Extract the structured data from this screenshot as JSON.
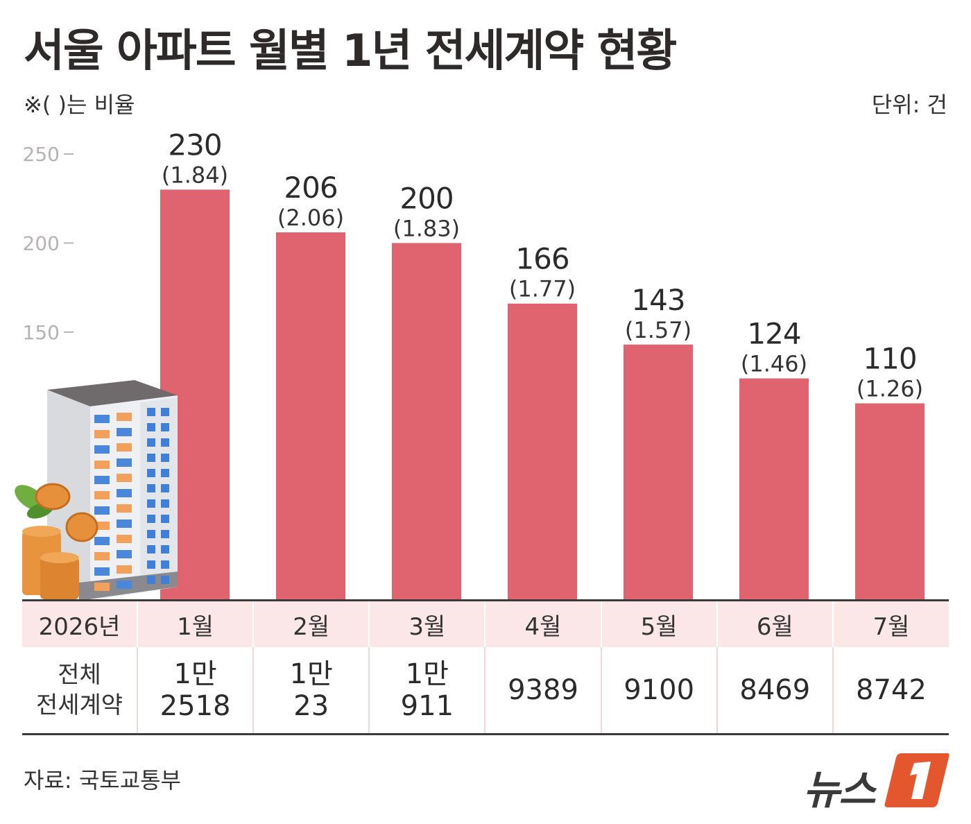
{
  "title": "서울 아파트 월별 1년 전세계약 현황",
  "note": "※( )는 비율",
  "unit": "단위: 건",
  "colors": {
    "bar": "#e0646f",
    "table_header_bg": "#fbe7e8",
    "axis": "#b7b2b2"
  },
  "chart_data": {
    "type": "bar",
    "categories": [
      "1월",
      "2월",
      "3월",
      "4월",
      "5월",
      "6월",
      "7월"
    ],
    "values": [
      230,
      206,
      200,
      166,
      143,
      124,
      110
    ],
    "ratios": [
      "(1.84)",
      "(2.06)",
      "(1.83)",
      "(1.77)",
      "(1.57)",
      "(1.46)",
      "(1.26)"
    ],
    "yticks": [
      150,
      200,
      250
    ],
    "ylim": [
      0,
      250
    ],
    "title": "서울 아파트 월별 1년 전세계약 현황",
    "ylabel": "",
    "grid": false
  },
  "table": {
    "year_label": "2026년",
    "months": [
      "1월",
      "2월",
      "3월",
      "4월",
      "5월",
      "6월",
      "7월"
    ],
    "total_label_line1": "전체",
    "total_label_line2": "전세계약",
    "totals": [
      {
        "line1": "1만",
        "line2": "2518"
      },
      {
        "line1": "1만",
        "line2": "23"
      },
      {
        "line1": "1만",
        "line2": "911"
      },
      {
        "line1": "",
        "line2": "9389"
      },
      {
        "line1": "",
        "line2": "9100"
      },
      {
        "line1": "",
        "line2": "8469"
      },
      {
        "line1": "",
        "line2": "8742"
      }
    ]
  },
  "source": "자료: 국토교통부",
  "logo": {
    "text": "뉴스",
    "mark": "1"
  },
  "icons": [
    "apartment-building-icon",
    "coin-stack-icon",
    "leaf-icon"
  ]
}
